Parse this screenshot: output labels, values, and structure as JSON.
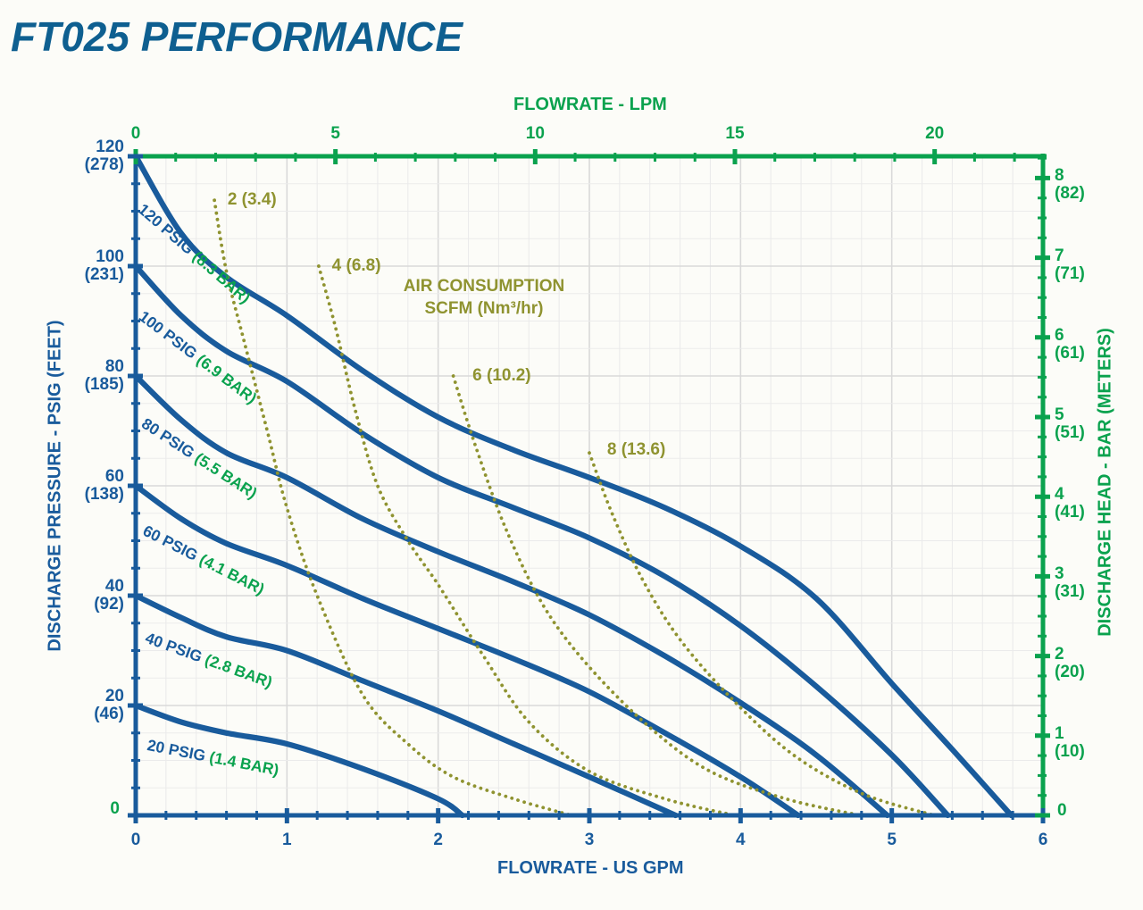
{
  "page": {
    "title": "FT025 PERFORMANCE"
  },
  "colors": {
    "title_blue": "#0e5f90",
    "curve_blue": "#195b9c",
    "axis_green": "#0aa24e",
    "air_olive": "#8f9330",
    "grid_minor": "#ebebeb",
    "grid_major": "#d9d9d9",
    "background": "#fcfcf8"
  },
  "chart_data": {
    "type": "line",
    "title": "FT025 PERFORMANCE",
    "grid": true,
    "legend_position": "inline-curve-labels",
    "axes": {
      "bottom": {
        "label": "FLOWRATE - US GPM",
        "unit": "US GPM",
        "range": [
          0,
          6
        ],
        "major_ticks": [
          "0",
          "1",
          "2",
          "3",
          "4",
          "5",
          "6"
        ],
        "major_tick_values": [
          0,
          1,
          2,
          3,
          4,
          5,
          6
        ],
        "minor_step": 0.2
      },
      "top": {
        "label": "FLOWRATE - LPM",
        "unit": "LPM",
        "range": [
          0,
          22.71
        ],
        "major_ticks": [
          "0",
          "5",
          "10",
          "15",
          "20"
        ],
        "major_tick_values": [
          0,
          5,
          10,
          15,
          20
        ],
        "minor_step": 1
      },
      "left": {
        "label": "DISCHARGE PRESSURE - PSIG (FEET)",
        "unit": "PSIG (FEET)",
        "range_psig": [
          0,
          120
        ],
        "minor_step_psig": 5,
        "major_step_psig": 20,
        "ticks": [
          {
            "psig": "120",
            "feet": "(278)",
            "value": 120
          },
          {
            "psig": "100",
            "feet": "(231)",
            "value": 100
          },
          {
            "psig": "80",
            "feet": "(185)",
            "value": 80
          },
          {
            "psig": "60",
            "feet": "(138)",
            "value": 60
          },
          {
            "psig": "40",
            "feet": "(92)",
            "value": 40
          },
          {
            "psig": "20",
            "feet": "(46)",
            "value": 20
          }
        ],
        "zero_label": "0"
      },
      "right": {
        "label": "DISCHARGE HEAD - BAR (METERS)",
        "unit": "BAR (METERS)",
        "range_bar": [
          0,
          8.27
        ],
        "minor_step_bar": 0.25,
        "major_step_bar": 1,
        "ticks": [
          {
            "bar": "8",
            "meters": "(82)",
            "value": 8
          },
          {
            "bar": "7",
            "meters": "(71)",
            "value": 7
          },
          {
            "bar": "6",
            "meters": "(61)",
            "value": 6
          },
          {
            "bar": "5",
            "meters": "(51)",
            "value": 5
          },
          {
            "bar": "4",
            "meters": "(41)",
            "value": 4
          },
          {
            "bar": "3",
            "meters": "(31)",
            "value": 3
          },
          {
            "bar": "2",
            "meters": "(20)",
            "value": 2
          },
          {
            "bar": "1",
            "meters": "(10)",
            "value": 1
          }
        ],
        "zero_label": "0"
      }
    },
    "series": [
      {
        "name": "120 PSIG (8.3 BAR)",
        "label_psig": "120 PSIG ",
        "label_bar": "(8.3 BAR)",
        "inlet_psig": 120,
        "inlet_bar": 8.3,
        "label_pos": {
          "gpm": 0.07,
          "psig": 112,
          "angle_deg": 41
        },
        "points": [
          [
            0,
            120
          ],
          [
            0.3,
            106
          ],
          [
            0.6,
            98
          ],
          [
            1,
            91
          ],
          [
            1.5,
            81
          ],
          [
            2,
            72.5
          ],
          [
            2.5,
            66.5
          ],
          [
            3,
            61.5
          ],
          [
            3.5,
            56
          ],
          [
            4,
            49
          ],
          [
            4.5,
            39.5
          ],
          [
            5,
            24
          ],
          [
            5.4,
            12
          ],
          [
            5.79,
            0
          ]
        ]
      },
      {
        "name": "100 PSIG (6.9 BAR)",
        "label_psig": "100 PSIG ",
        "label_bar": "(6.9 BAR)",
        "inlet_psig": 100,
        "inlet_bar": 6.9,
        "label_pos": {
          "gpm": 0.07,
          "psig": 92.5,
          "angle_deg": 37
        },
        "points": [
          [
            0,
            100
          ],
          [
            0.3,
            91
          ],
          [
            0.6,
            84.5
          ],
          [
            1,
            79
          ],
          [
            1.5,
            69.5
          ],
          [
            2,
            61.5
          ],
          [
            2.5,
            56
          ],
          [
            3,
            50.5
          ],
          [
            3.5,
            43.5
          ],
          [
            4,
            34.5
          ],
          [
            4.5,
            23.5
          ],
          [
            5,
            11
          ],
          [
            5.37,
            0
          ]
        ]
      },
      {
        "name": "80 PSIG (5.5 BAR)",
        "label_psig": "80 PSIG ",
        "label_bar": "(5.5 BAR)",
        "inlet_psig": 80,
        "inlet_bar": 5.5,
        "label_pos": {
          "gpm": 0.08,
          "psig": 73,
          "angle_deg": 33
        },
        "points": [
          [
            0,
            80
          ],
          [
            0.3,
            72
          ],
          [
            0.6,
            66
          ],
          [
            1,
            61.5
          ],
          [
            1.5,
            54
          ],
          [
            2,
            48
          ],
          [
            2.5,
            42.5
          ],
          [
            3,
            36.5
          ],
          [
            3.5,
            29
          ],
          [
            4,
            20.5
          ],
          [
            4.5,
            11
          ],
          [
            4.97,
            0
          ]
        ]
      },
      {
        "name": "60 PSIG (4.1 BAR)",
        "label_psig": "60 PSIG ",
        "label_bar": "(4.1 BAR)",
        "inlet_psig": 60,
        "inlet_bar": 4.1,
        "label_pos": {
          "gpm": 0.08,
          "psig": 53.5,
          "angle_deg": 27
        },
        "points": [
          [
            0,
            60
          ],
          [
            0.3,
            54
          ],
          [
            0.6,
            49.5
          ],
          [
            1,
            45.5
          ],
          [
            1.5,
            39.5
          ],
          [
            2,
            34
          ],
          [
            2.5,
            28.5
          ],
          [
            3,
            22.5
          ],
          [
            3.5,
            15
          ],
          [
            4,
            7
          ],
          [
            4.38,
            0
          ]
        ]
      },
      {
        "name": "40 PSIG (2.8 BAR)",
        "label_psig": "40 PSIG ",
        "label_bar": "(2.8 BAR)",
        "inlet_psig": 40,
        "inlet_bar": 2.8,
        "label_pos": {
          "gpm": 0.09,
          "psig": 34,
          "angle_deg": 20
        },
        "points": [
          [
            0,
            40
          ],
          [
            0.3,
            36
          ],
          [
            0.6,
            32.5
          ],
          [
            1,
            30
          ],
          [
            1.5,
            24.5
          ],
          [
            2,
            19
          ],
          [
            2.5,
            13
          ],
          [
            3,
            7
          ],
          [
            3.57,
            0
          ]
        ]
      },
      {
        "name": "20 PSIG (1.4 BAR)",
        "label_psig": "20 PSIG ",
        "label_bar": "(1.4 BAR)",
        "inlet_psig": 20,
        "inlet_bar": 1.4,
        "label_pos": {
          "gpm": 0.09,
          "psig": 14.5,
          "angle_deg": 11
        },
        "points": [
          [
            0,
            20
          ],
          [
            0.3,
            17
          ],
          [
            0.6,
            15
          ],
          [
            1,
            13
          ],
          [
            1.5,
            8.5
          ],
          [
            2,
            3
          ],
          [
            2.16,
            0
          ]
        ]
      }
    ],
    "air_consumption": {
      "note_line1": "AIR CONSUMPTION",
      "note_line2": "SCFM (Nm³/hr)",
      "curves": [
        {
          "label": "2 (3.4)",
          "scfm": 2,
          "nm3_hr": 3.4,
          "label_pos": {
            "gpm": 0.56,
            "psig": 112
          },
          "points": [
            [
              0.52,
              112
            ],
            [
              0.6,
              99
            ],
            [
              0.72,
              86
            ],
            [
              0.87,
              70
            ],
            [
              1.0,
              56
            ],
            [
              1.2,
              40
            ],
            [
              1.5,
              22
            ],
            [
              1.8,
              13
            ],
            [
              2.1,
              7
            ],
            [
              2.5,
              3
            ],
            [
              2.88,
              0
            ]
          ]
        },
        {
          "label": "4 (6.8)",
          "scfm": 4,
          "nm3_hr": 6.8,
          "label_pos": {
            "gpm": 1.25,
            "psig": 100
          },
          "points": [
            [
              1.21,
              100
            ],
            [
              1.32,
              89
            ],
            [
              1.45,
              74
            ],
            [
              1.6,
              60
            ],
            [
              1.8,
              50
            ],
            [
              2.0,
              42
            ],
            [
              2.3,
              29
            ],
            [
              2.6,
              17
            ],
            [
              3.0,
              8
            ],
            [
              3.5,
              3
            ],
            [
              3.96,
              0
            ]
          ]
        },
        {
          "label": "6 (10.2)",
          "scfm": 6,
          "nm3_hr": 10.2,
          "label_pos": {
            "gpm": 2.18,
            "psig": 80
          },
          "points": [
            [
              2.1,
              80
            ],
            [
              2.25,
              67
            ],
            [
              2.45,
              52
            ],
            [
              2.7,
              38
            ],
            [
              3.0,
              27
            ],
            [
              3.4,
              16
            ],
            [
              3.8,
              8
            ],
            [
              4.3,
              3
            ],
            [
              4.79,
              0
            ]
          ]
        },
        {
          "label": "8 (13.6)",
          "scfm": 8,
          "nm3_hr": 13.6,
          "label_pos": {
            "gpm": 3.07,
            "psig": 66.5
          },
          "points": [
            [
              3.0,
              66
            ],
            [
              3.15,
              55
            ],
            [
              3.35,
              43
            ],
            [
              3.6,
              32
            ],
            [
              3.95,
              21
            ],
            [
              4.35,
              11
            ],
            [
              4.8,
              4
            ],
            [
              5.28,
              0
            ]
          ]
        }
      ]
    }
  }
}
